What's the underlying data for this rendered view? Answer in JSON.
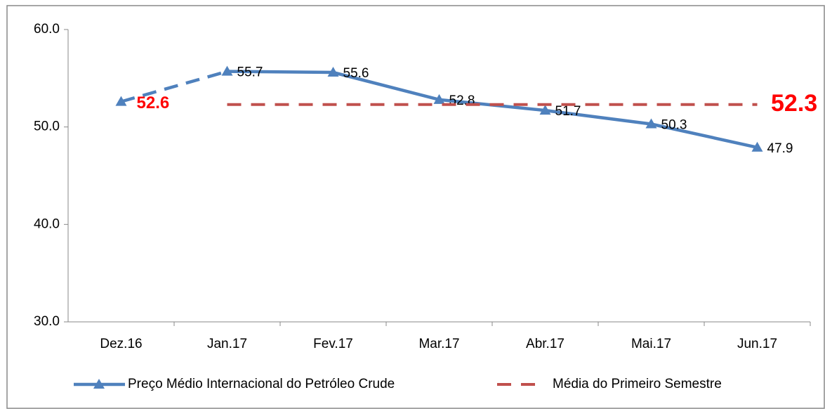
{
  "chart_data": {
    "type": "line",
    "categories": [
      "Dez.16",
      "Jan.17",
      "Fev.17",
      "Mar.17",
      "Abr.17",
      "Mai.17",
      "Jun.17"
    ],
    "series": [
      {
        "name": "Preço Médio Internacional do Petróleo Crude",
        "color": "#4f81bd",
        "values": [
          52.6,
          55.7,
          55.6,
          52.8,
          51.7,
          50.3,
          47.9
        ],
        "marker": "triangle",
        "dashed_first_segment": true
      },
      {
        "name": "Média do Primeiro Semestre",
        "color": "#c0504d",
        "values": [
          null,
          52.3,
          52.3,
          52.3,
          52.3,
          52.3,
          52.3
        ],
        "dashed": true
      }
    ],
    "ylim": [
      30,
      60
    ],
    "yticks": [
      {
        "value": 30,
        "label": "30.0"
      },
      {
        "value": 40,
        "label": "40.0"
      },
      {
        "value": 50,
        "label": "50.0"
      },
      {
        "value": 60,
        "label": "60.0"
      }
    ],
    "grid": false,
    "legend": "bottom"
  }
}
